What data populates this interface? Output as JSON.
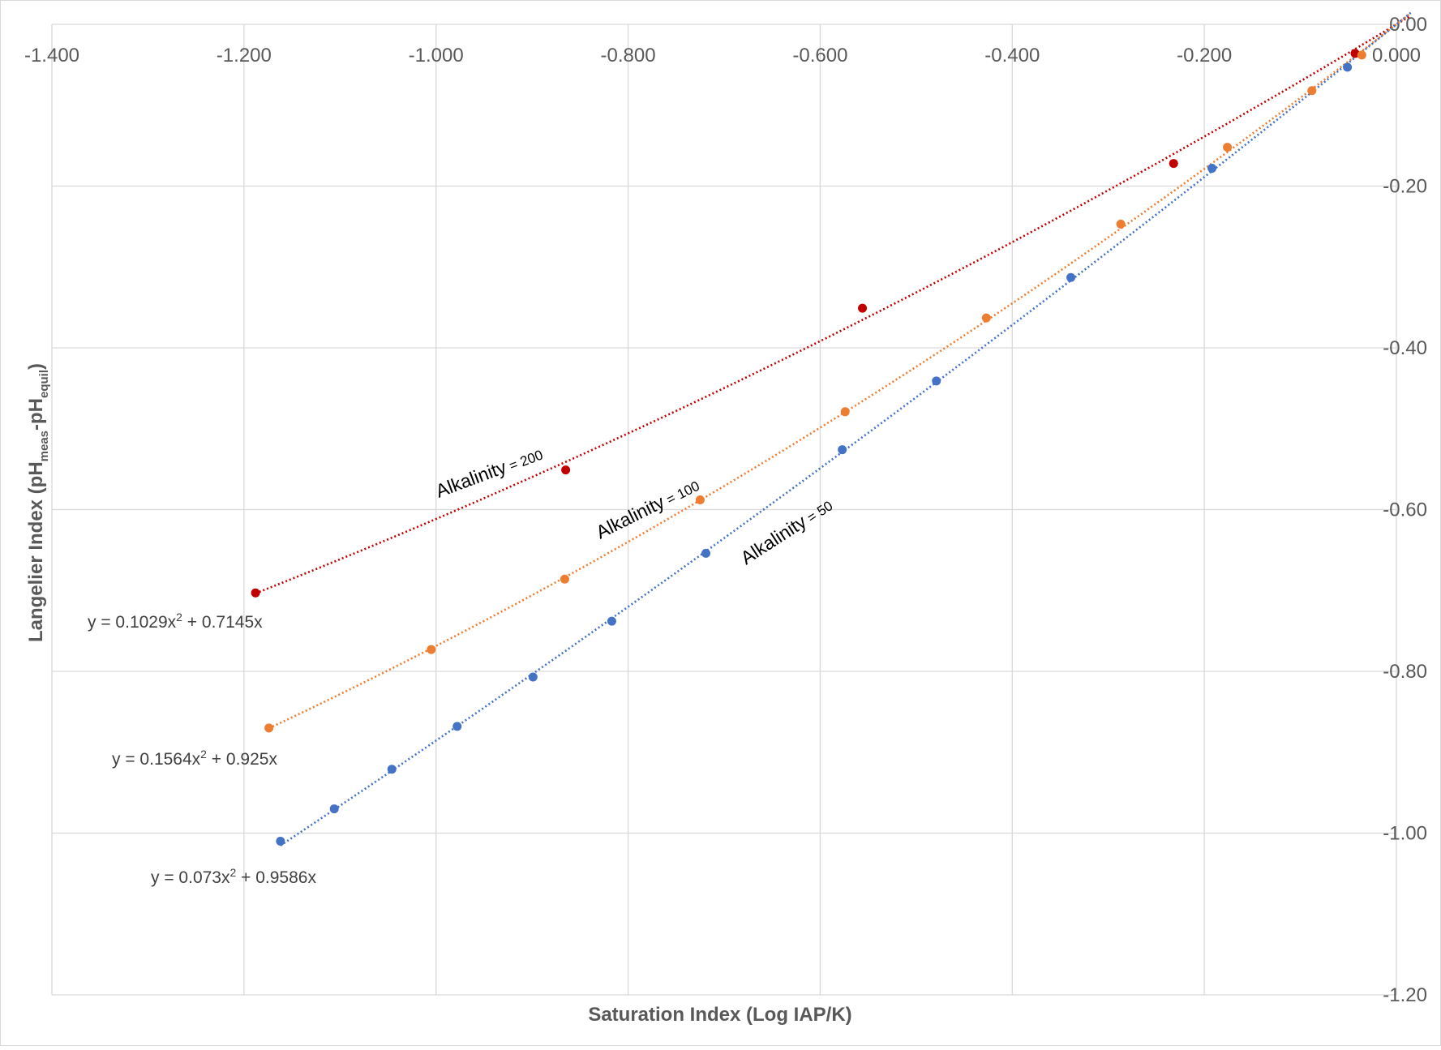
{
  "chart_data": {
    "type": "scatter",
    "title": "",
    "xlabel": "Saturation Index (Log IAP/K)",
    "ylabel": {
      "prefix": "Langelier Index (pH",
      "sub1": "meas",
      "middle": "-pH",
      "sub2": "equil",
      "suffix": ")"
    },
    "xlim": [
      -1.4,
      0.0
    ],
    "ylim": [
      -1.2,
      0.0
    ],
    "x_ticks": [
      -1.4,
      -1.2,
      -1.0,
      -0.8,
      -0.6,
      -0.4,
      -0.2,
      0.0
    ],
    "x_tick_labels": [
      "-1.400",
      "-1.200",
      "-1.000",
      "-0.800",
      "-0.600",
      "-0.400",
      "-0.200",
      "0.000"
    ],
    "y_ticks": [
      0.0,
      -0.2,
      -0.4,
      -0.6,
      -0.8,
      -1.0,
      -1.2
    ],
    "y_tick_labels": [
      "0.00",
      "-0.20",
      "-0.40",
      "-0.60",
      "-0.80",
      "-1.00",
      "-1.20"
    ],
    "grid": true,
    "x_axis_position": "top",
    "y_axis_position": "right",
    "series": [
      {
        "key": "alk200",
        "color": "#C00000",
        "label_main": "Alkalinity",
        "label_small": " = 200",
        "equation": {
          "a": "y = 0.1029x",
          "sup": "2",
          "b": " + 0.7145x"
        },
        "fit": {
          "a": 0.1029,
          "b": 0.7145
        },
        "x": [
          -1.188,
          -0.865,
          -0.556,
          -0.232,
          -0.043
        ],
        "y": [
          -0.703,
          -0.551,
          -0.351,
          -0.172,
          -0.036
        ]
      },
      {
        "key": "alk100",
        "color": "#ED7D31",
        "label_main": "Alkalinity",
        "label_small": " = 100",
        "equation": {
          "a": "y = 0.1564x",
          "sup": "2",
          "b": " + 0.925x"
        },
        "fit": {
          "a": 0.1564,
          "b": 0.925
        },
        "x": [
          -1.174,
          -1.005,
          -0.866,
          -0.725,
          -0.574,
          -0.427,
          -0.287,
          -0.176,
          -0.088,
          -0.036
        ],
        "y": [
          -0.87,
          -0.773,
          -0.686,
          -0.588,
          -0.479,
          -0.363,
          -0.247,
          -0.152,
          -0.082,
          -0.038
        ]
      },
      {
        "key": "alk50",
        "color": "#4472C4",
        "label_main": "Alkalinity",
        "label_small": " = 50",
        "equation": {
          "a": "y = 0.073x",
          "sup": "2",
          "b": " + 0.9586x"
        },
        "fit": {
          "a": 0.073,
          "b": 0.9586
        },
        "x": [
          -1.162,
          -1.106,
          -1.046,
          -0.978,
          -0.899,
          -0.817,
          -0.719,
          -0.577,
          -0.479,
          -0.339,
          -0.192,
          -0.051
        ],
        "y": [
          -1.01,
          -0.97,
          -0.921,
          -0.868,
          -0.807,
          -0.738,
          -0.654,
          -0.526,
          -0.441,
          -0.313,
          -0.178,
          -0.053
        ]
      }
    ]
  }
}
